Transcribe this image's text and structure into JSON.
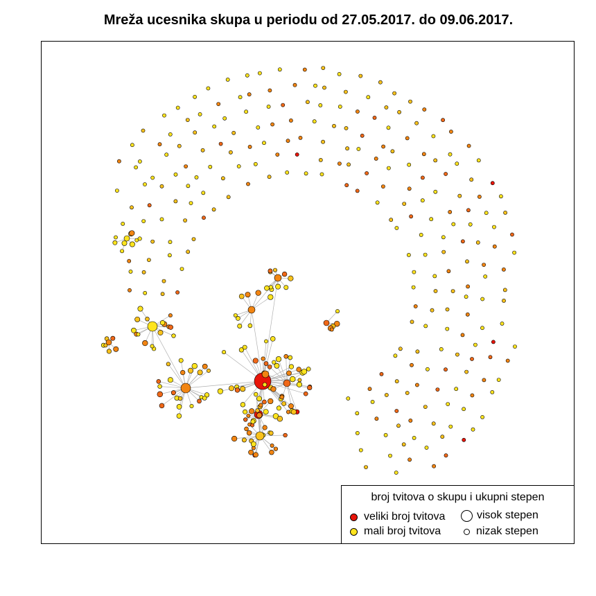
{
  "title": "Mreža ucesnika skupa u periodu od 27.05.2017. do 09.06.2017.",
  "colors": {
    "high_tweets": "#e8150a",
    "mid_tweets": "#f28512",
    "low_tweets": "#ffe41e",
    "edge": "#b0b0b0",
    "node_stroke": "#000000"
  },
  "legend": {
    "title": "broj tvitova o skupu i ukupni stepen",
    "items": [
      {
        "label": "veliki broj tvitova",
        "kind": "color",
        "color": "#e8150a"
      },
      {
        "label": "visok stepen",
        "kind": "size",
        "size": "large"
      },
      {
        "label": "mali broj tvitova",
        "kind": "color",
        "color": "#ffe41e"
      },
      {
        "label": "nizak stepen",
        "kind": "size",
        "size": "small"
      }
    ]
  }
}
